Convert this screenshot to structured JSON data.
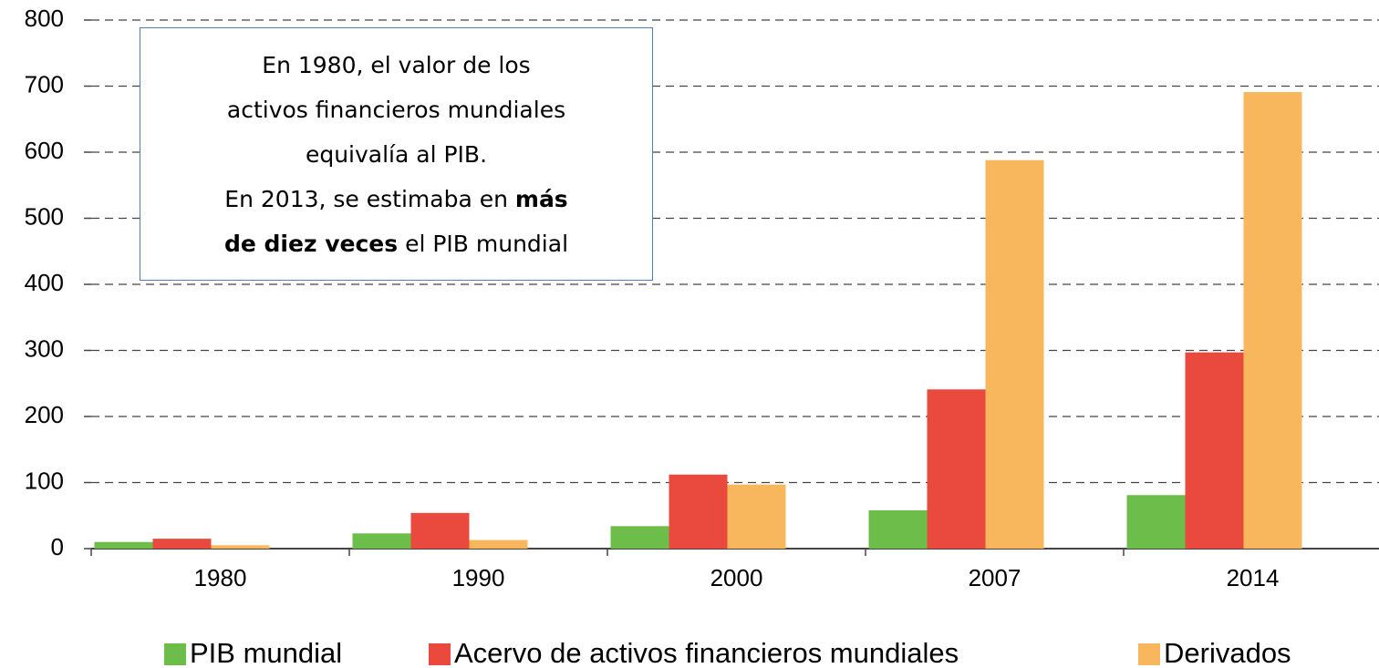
{
  "chart_data": {
    "type": "bar",
    "categories": [
      "1980",
      "1990",
      "2000",
      "2007",
      "2014"
    ],
    "series": [
      {
        "name": "PIB mundial",
        "color": "#6cbd4a",
        "values": [
          10,
          23,
          34,
          58,
          81
        ]
      },
      {
        "name": "Acervo de activos financieros mundiales",
        "color": "#ea4a3d",
        "values": [
          15,
          54,
          112,
          241,
          297
        ]
      },
      {
        "name": "Derivados",
        "color": "#f8b75c",
        "values": [
          5,
          13,
          97,
          588,
          691
        ]
      }
    ],
    "ylim": [
      0,
      800
    ],
    "yticks": [
      0,
      100,
      200,
      300,
      400,
      500,
      600,
      700,
      800
    ],
    "grid": true,
    "legend": "bottom",
    "annotation": [
      [
        "En 1980, el valor de los"
      ],
      [
        "activos financieros mundiales"
      ],
      [
        "equivalía al PIB."
      ],
      [
        "En 2013, se estimaba en ",
        {
          "text": "más",
          "bold": true
        }
      ],
      [
        {
          "text": "de diez veces",
          "bold": true
        },
        " el PIB mundial"
      ]
    ]
  }
}
